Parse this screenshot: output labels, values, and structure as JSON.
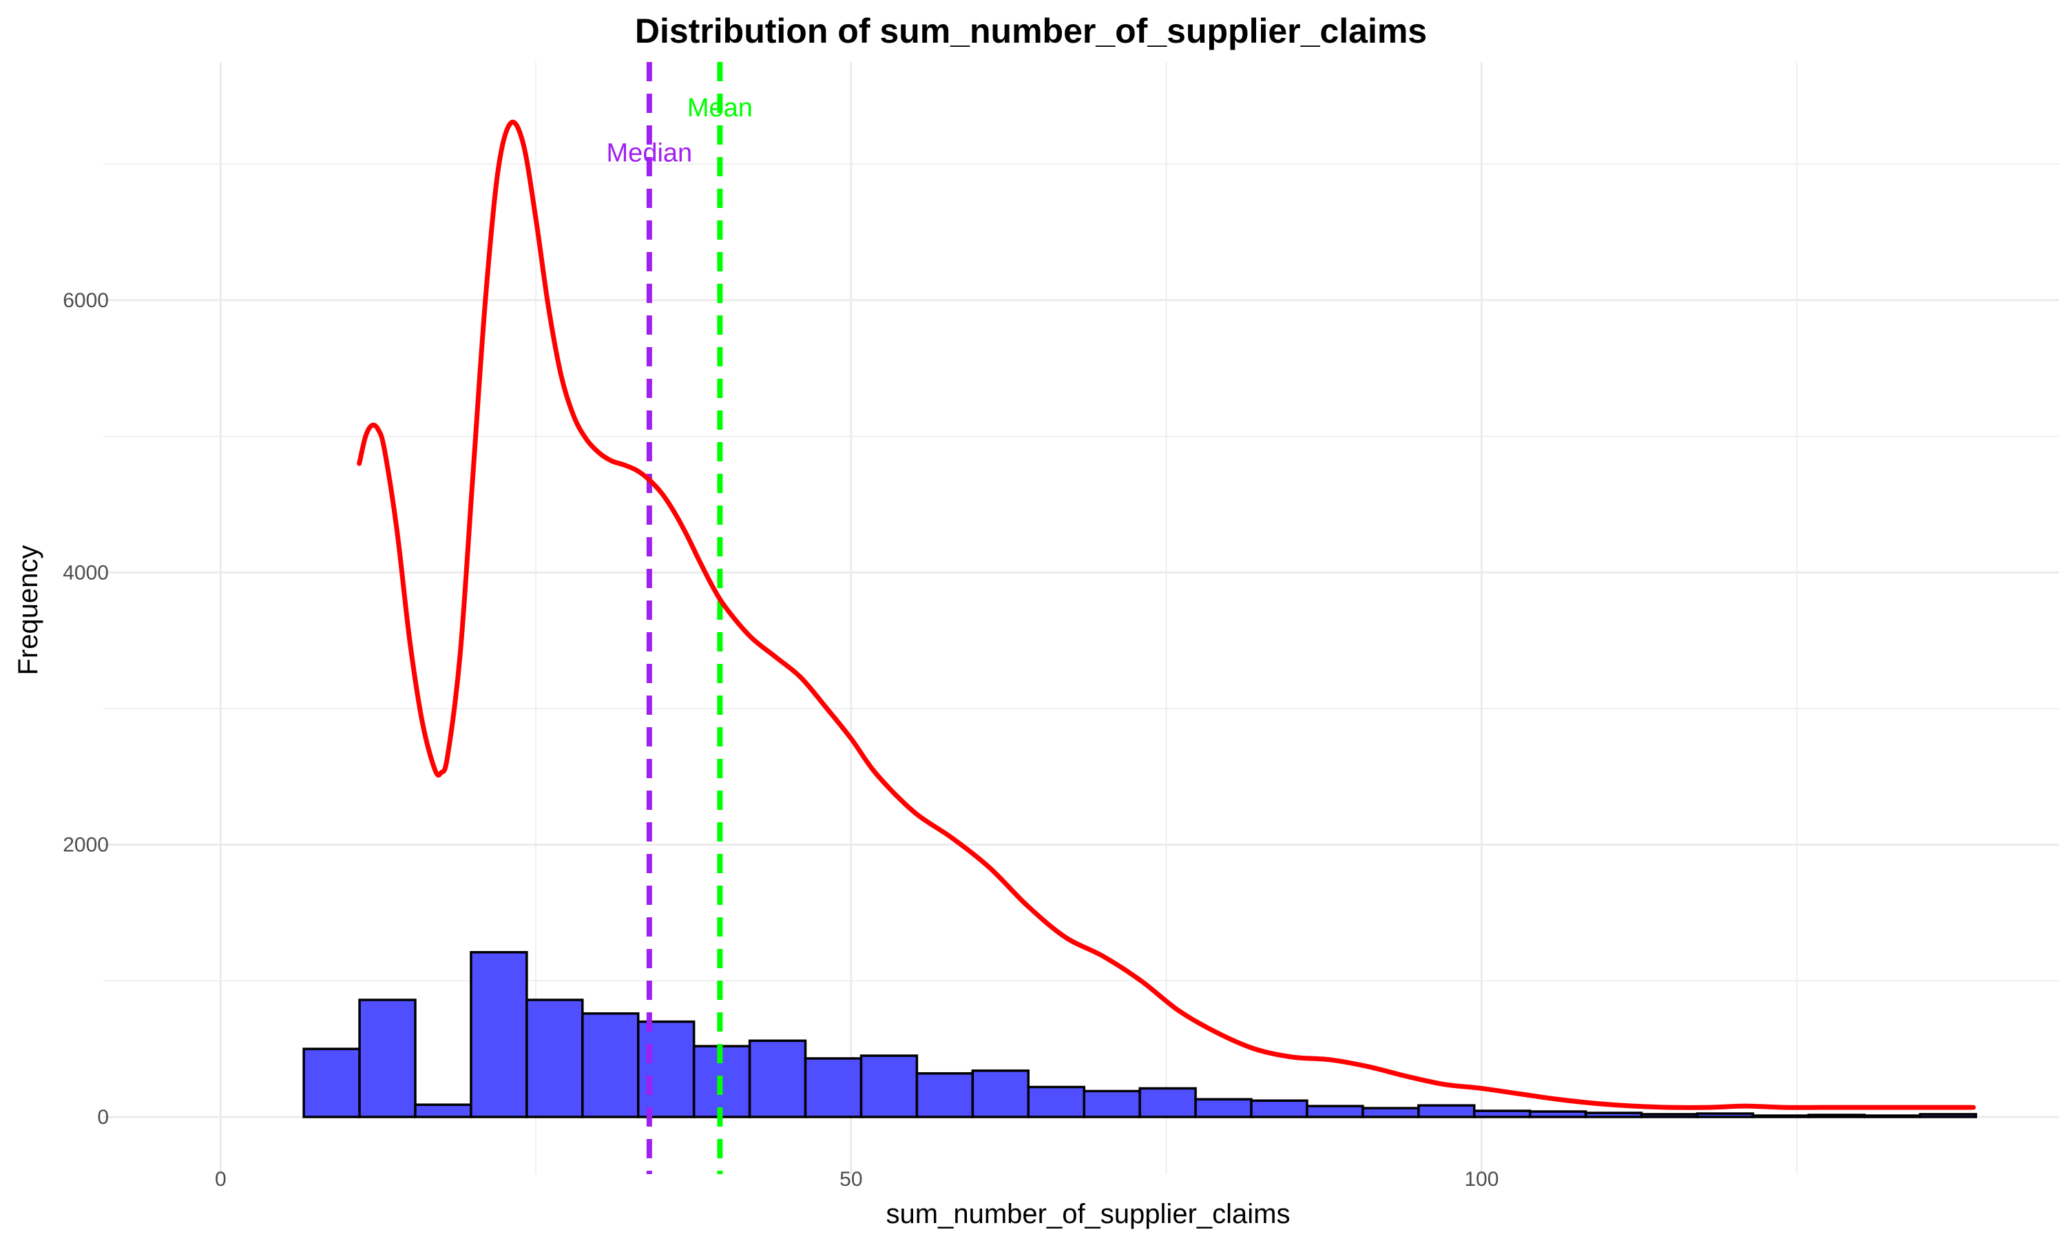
{
  "chart_data": {
    "type": "bar",
    "title": "Distribution of sum_number_of_supplier_claims",
    "xlabel": "sum_number_of_supplier_claims",
    "ylabel": "Frequency",
    "xlim": [
      -9.3,
      145.8
    ],
    "ylim": [
      -420,
      7750
    ],
    "x_ticks": [
      0,
      50,
      100
    ],
    "x_tick_labels": [
      "0",
      "50",
      "100"
    ],
    "y_ticks": [
      0,
      2000,
      4000,
      6000
    ],
    "y_tick_labels": [
      "0",
      "2000",
      "4000",
      "6000"
    ],
    "grid": true,
    "histogram": {
      "bin_width": 4.42,
      "bin_start": 6.6,
      "counts": [
        500,
        860,
        90,
        1210,
        860,
        760,
        700,
        520,
        560,
        430,
        450,
        320,
        340,
        220,
        190,
        210,
        130,
        120,
        80,
        65,
        85,
        45,
        40,
        30,
        20,
        25,
        10,
        15,
        10,
        20
      ],
      "fill": "#4b4bff",
      "edge": "#000000"
    },
    "density_curve": {
      "name": "density",
      "color": "#ff0000",
      "x": [
        11,
        11.5,
        12,
        12.5,
        13,
        14,
        15,
        16,
        17,
        17.5,
        18,
        19,
        20,
        21,
        22,
        23,
        24,
        25,
        26,
        27,
        28,
        29,
        30,
        31,
        32,
        33,
        34,
        35,
        36,
        37,
        38,
        39,
        40,
        42,
        44,
        46,
        48,
        50,
        52,
        55,
        58,
        61,
        64,
        67,
        70,
        73,
        76,
        79,
        82,
        85,
        88,
        91,
        94,
        97,
        100,
        103,
        106,
        109,
        112,
        115,
        118,
        121,
        124,
        127,
        130,
        133,
        136,
        139
      ],
      "y": [
        4800,
        5000,
        5080,
        5050,
        4900,
        4300,
        3500,
        2900,
        2550,
        2530,
        2650,
        3400,
        4700,
        6000,
        6950,
        7300,
        7150,
        6600,
        5950,
        5450,
        5150,
        4980,
        4880,
        4820,
        4790,
        4750,
        4680,
        4580,
        4440,
        4270,
        4080,
        3900,
        3750,
        3530,
        3380,
        3230,
        3010,
        2780,
        2520,
        2240,
        2050,
        1830,
        1550,
        1320,
        1180,
        1000,
        780,
        620,
        500,
        440,
        420,
        370,
        300,
        240,
        210,
        170,
        130,
        100,
        80,
        70,
        70,
        80,
        70,
        70,
        70,
        70,
        70,
        70
      ],
      "width": 7
    },
    "reference_lines": [
      {
        "name": "median-line",
        "label": "Median",
        "x": 34,
        "color": "#a020f0",
        "label_y": 7020
      },
      {
        "name": "mean-line",
        "label": "Mean",
        "x": 39.6,
        "color": "#00ff00",
        "label_y": 7350
      }
    ]
  }
}
